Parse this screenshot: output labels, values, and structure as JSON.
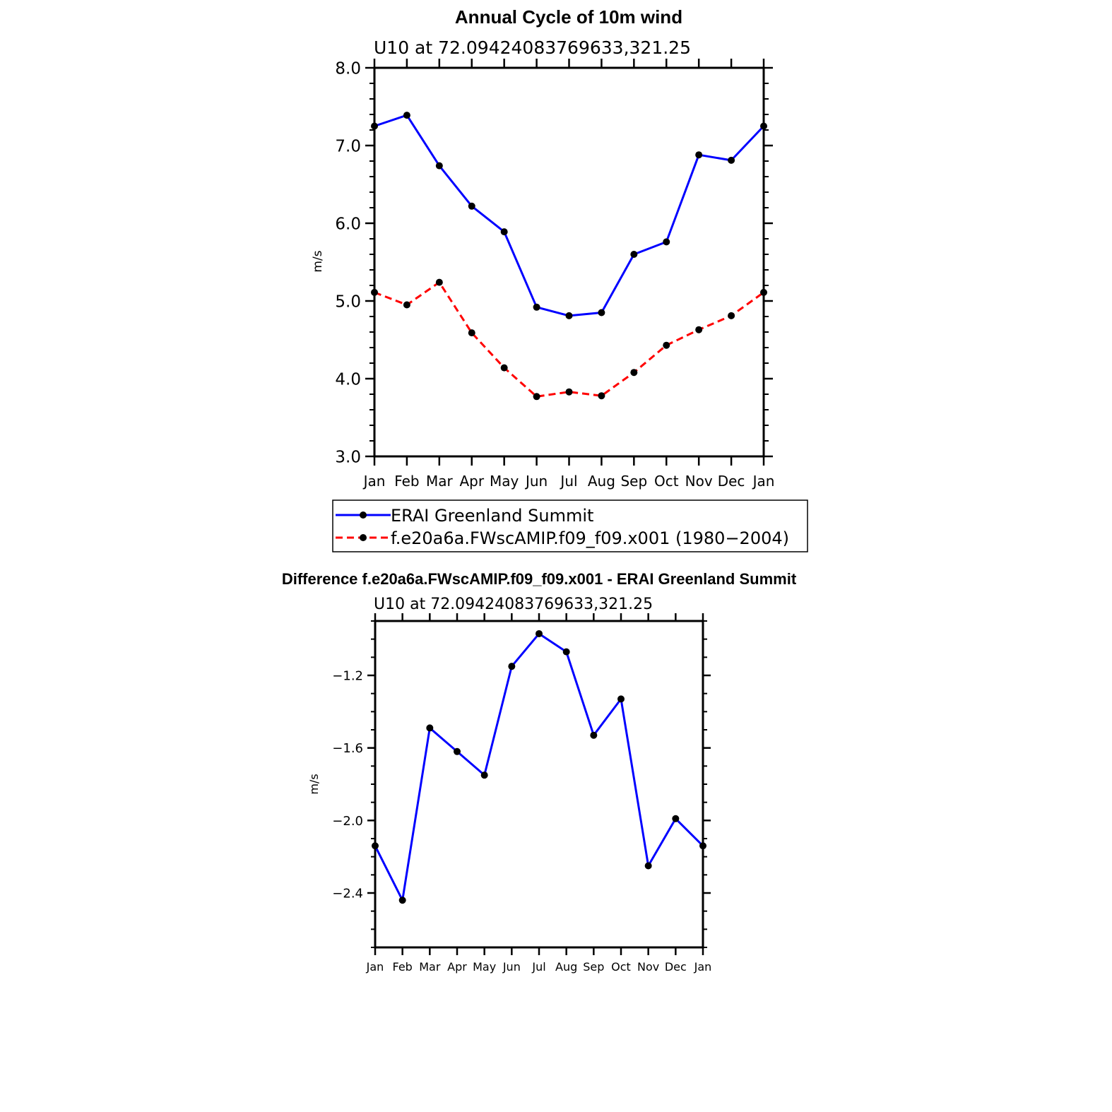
{
  "chart_data": [
    {
      "type": "line",
      "title": "Annual Cycle of 10m wind",
      "subtitle": "U10 at 72.09424083769633,321.25",
      "ylabel": "m/s",
      "xlabel": "",
      "ylim": [
        3.0,
        8.0
      ],
      "yticks": [
        3.0,
        4.0,
        5.0,
        6.0,
        7.0,
        8.0
      ],
      "ytick_labels": [
        "3.0",
        "4.0",
        "5.0",
        "6.0",
        "7.0",
        "8.0"
      ],
      "categories": [
        "Jan",
        "Feb",
        "Mar",
        "Apr",
        "May",
        "Jun",
        "Jul",
        "Aug",
        "Sep",
        "Oct",
        "Nov",
        "Dec",
        "Jan"
      ],
      "legend": "bottom",
      "series": [
        {
          "name": "ERAI Greenland Summit",
          "color": "#0000ff",
          "dash": "solid",
          "values": [
            7.25,
            7.39,
            6.74,
            6.22,
            5.89,
            4.92,
            4.81,
            4.85,
            5.6,
            5.76,
            6.88,
            6.81,
            7.25
          ]
        },
        {
          "name": "f.e20a6a.FWscAMIP.f09_f09.x001 (1980−2004)",
          "color": "#ff0000",
          "dash": "dashed",
          "values": [
            5.11,
            4.95,
            5.24,
            4.59,
            4.14,
            3.77,
            3.83,
            3.78,
            4.08,
            4.43,
            4.63,
            4.81,
            5.11
          ]
        }
      ]
    },
    {
      "type": "line",
      "title": "Difference f.e20a6a.FWscAMIP.f09_f09.x001 - ERAI Greenland Summit",
      "subtitle": "U10 at 72.09424083769633,321.25",
      "ylabel": "m/s",
      "xlabel": "",
      "ylim": [
        -2.7,
        -0.9
      ],
      "yticks": [
        -2.4,
        -2.0,
        -1.6,
        -1.2
      ],
      "ytick_labels": [
        "−2.4",
        "−2.0",
        "−1.6",
        "−1.2"
      ],
      "categories": [
        "Jan",
        "Feb",
        "Mar",
        "Apr",
        "May",
        "Jun",
        "Jul",
        "Aug",
        "Sep",
        "Oct",
        "Nov",
        "Dec",
        "Jan"
      ],
      "series": [
        {
          "name": "Difference",
          "color": "#0000ff",
          "dash": "solid",
          "values": [
            -2.14,
            -2.44,
            -1.49,
            -1.62,
            -1.75,
            -1.15,
            -0.97,
            -1.07,
            -1.53,
            -1.33,
            -2.25,
            -1.99,
            -2.14
          ]
        }
      ]
    }
  ]
}
